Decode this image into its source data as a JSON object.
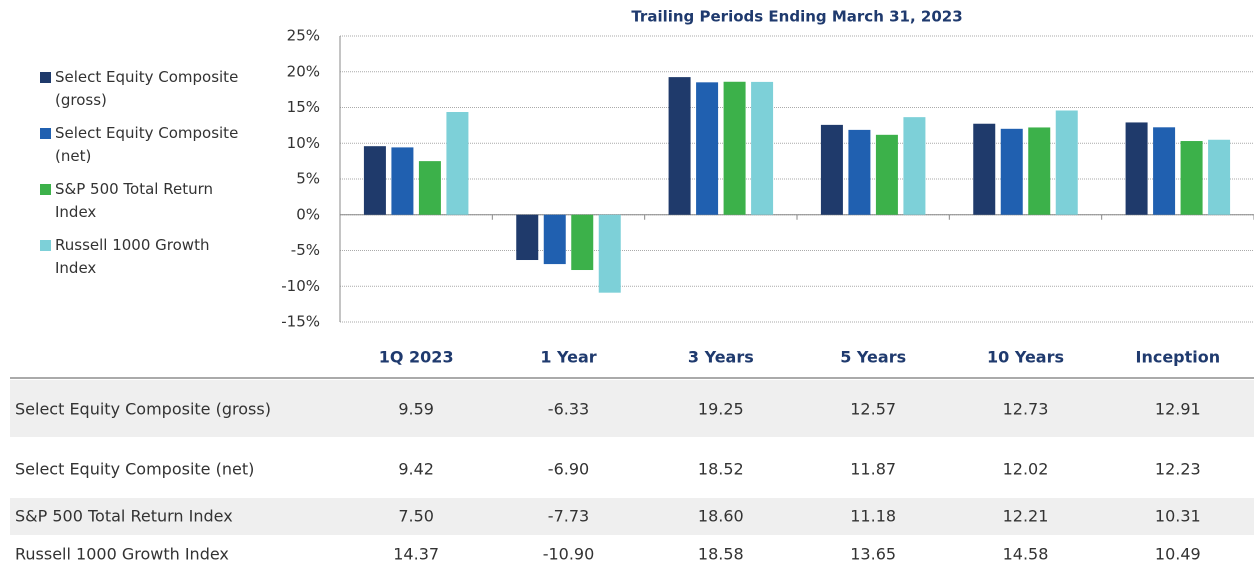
{
  "chart_data": {
    "type": "bar",
    "title": "Trailing Periods Ending March 31, 2023",
    "categories": [
      "1Q 2023",
      "1 Year",
      "3 Years",
      "5 Years",
      "10 Years",
      "Inception"
    ],
    "series": [
      {
        "name": "Select Equity Composite (gross)",
        "color": "#1f3a6b",
        "values": [
          9.59,
          -6.33,
          19.25,
          12.57,
          12.73,
          12.91
        ],
        "value_labels": [
          "9.59",
          "-6.33",
          "19.25",
          "12.57",
          "12.73",
          "12.91"
        ]
      },
      {
        "name": "Select Equity Composite (net)",
        "color": "#2060b0",
        "values": [
          9.42,
          -6.9,
          18.52,
          11.87,
          12.02,
          12.23
        ],
        "value_labels": [
          "9.42",
          "-6.90",
          "18.52",
          "11.87",
          "12.02",
          "12.23"
        ]
      },
      {
        "name": "S&P 500 Total Return Index",
        "color": "#3cb14a",
        "values": [
          7.5,
          -7.73,
          18.6,
          11.18,
          12.21,
          10.31
        ],
        "value_labels": [
          "7.50",
          "-7.73",
          "18.60",
          "11.18",
          "12.21",
          "10.31"
        ]
      },
      {
        "name": "Russell 1000 Growth Index",
        "color": "#7dd0d8",
        "values": [
          14.37,
          -10.9,
          18.58,
          13.65,
          14.58,
          10.49
        ],
        "value_labels": [
          "14.37",
          "-10.90",
          "18.58",
          "13.65",
          "14.58",
          "10.49"
        ]
      }
    ],
    "ylim": [
      -15,
      25
    ],
    "yticks": [
      {
        "value": -15,
        "label": "-15%"
      },
      {
        "value": -10,
        "label": "-10%"
      },
      {
        "value": -5,
        "label": "-5%"
      },
      {
        "value": 0,
        "label": "0%"
      },
      {
        "value": 5,
        "label": "5%"
      },
      {
        "value": 10,
        "label": "10%"
      },
      {
        "value": 15,
        "label": "15%"
      },
      {
        "value": 20,
        "label": "20%"
      },
      {
        "value": 25,
        "label": "25%"
      }
    ],
    "grid": true,
    "legend": "left"
  }
}
